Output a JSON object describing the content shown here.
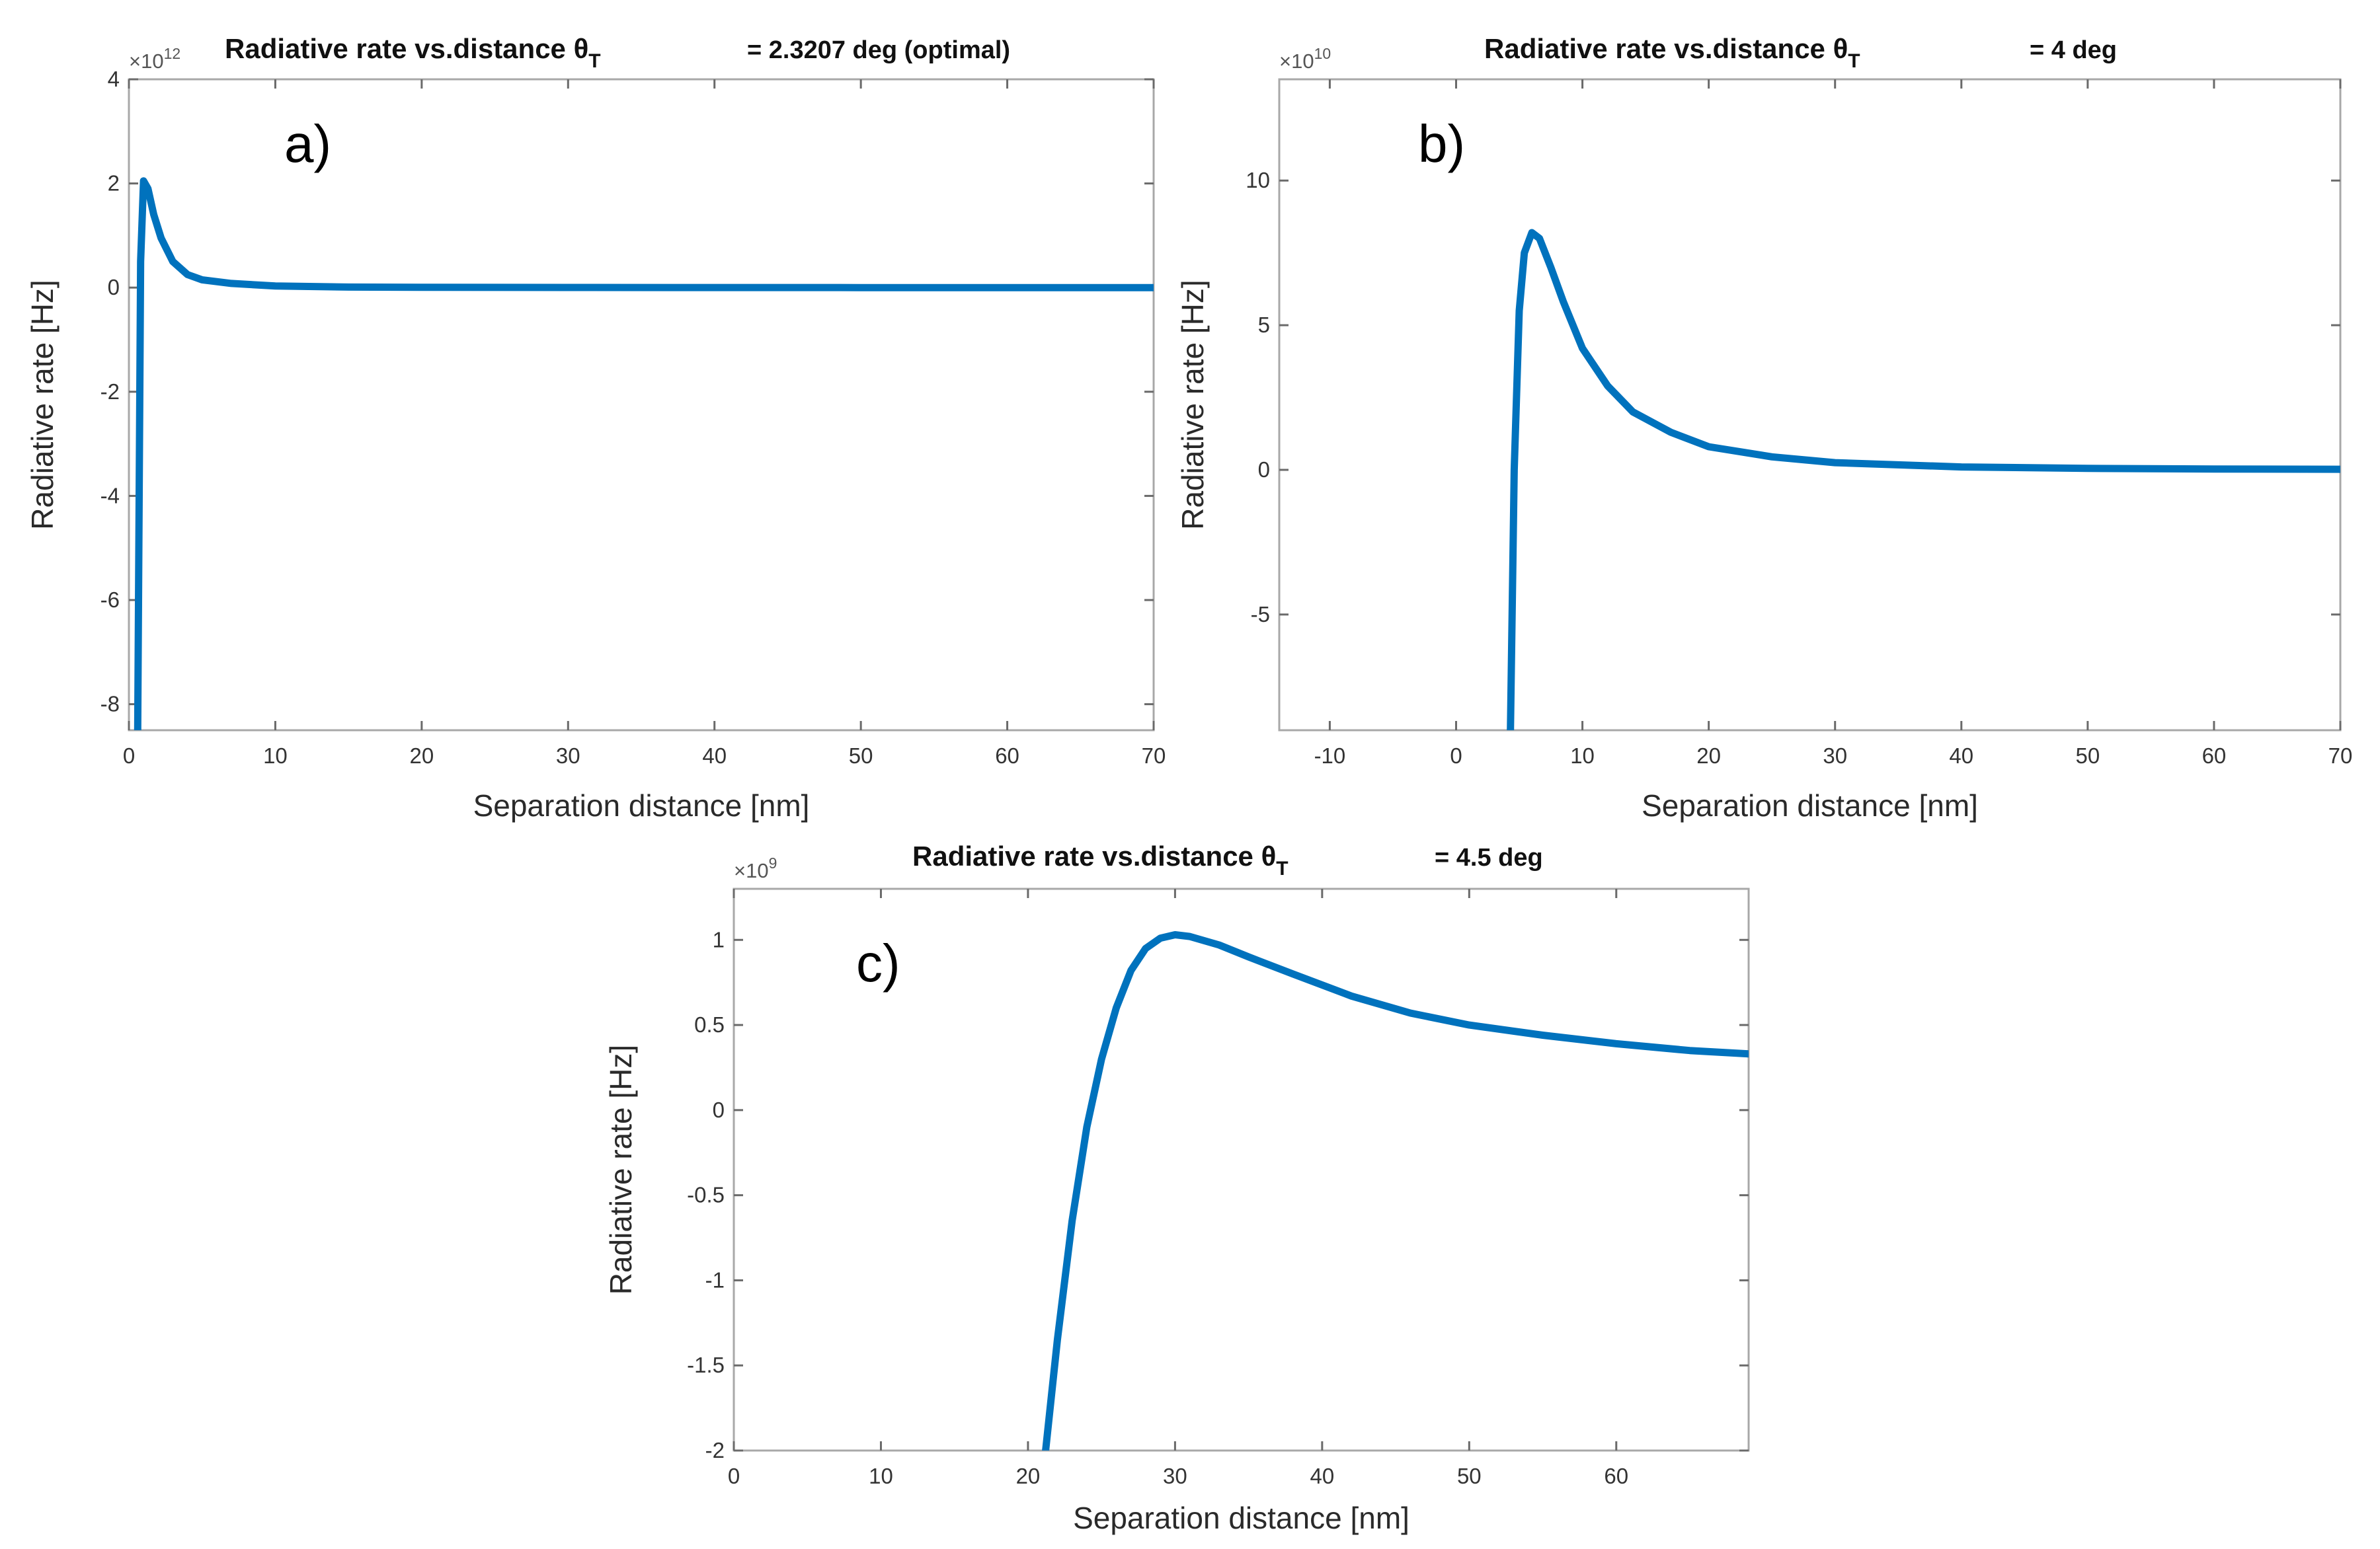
{
  "colors": {
    "series": "#0072BD",
    "axis": "#a8a8a8"
  },
  "chart_data": [
    {
      "type": "line",
      "panel": "a)",
      "title": "Radiative rate vs.distance θ",
      "title_subscript": "T",
      "title_value": "= 2.3207 deg (optimal)",
      "xlabel": "Separation distance [nm]",
      "ylabel": "Radiative rate [Hz]",
      "y_exponent_base": "×10",
      "y_exponent": "12",
      "xlim": [
        0,
        70
      ],
      "ylim": [
        -8.5,
        4
      ],
      "xticks": [
        0,
        10,
        20,
        30,
        40,
        50,
        60,
        70
      ],
      "xtick_labels": [
        "0",
        "10",
        "20",
        "30",
        "40",
        "50",
        "60",
        "70"
      ],
      "yticks": [
        -8,
        -6,
        -4,
        -2,
        0,
        2,
        4
      ],
      "ytick_labels": [
        "-8",
        "-6",
        "-4",
        "-2",
        "0",
        "2",
        "4"
      ],
      "series": [
        {
          "name": "Radiative rate",
          "x": [
            0.6,
            0.8,
            1.0,
            1.3,
            1.7,
            2.2,
            3,
            4,
            5,
            7,
            10,
            15,
            20,
            30,
            40,
            50,
            60,
            70
          ],
          "y": [
            -8.5,
            0.5,
            2.05,
            1.9,
            1.4,
            0.95,
            0.5,
            0.25,
            0.15,
            0.08,
            0.03,
            0.01,
            0.005,
            0.002,
            0.001,
            0.0,
            0.0,
            0.0
          ]
        }
      ]
    },
    {
      "type": "line",
      "panel": "b)",
      "title": "Radiative rate vs.distance θ",
      "title_subscript": "T",
      "title_value": "= 4 deg",
      "xlabel": "Separation distance [nm]",
      "ylabel": "Radiative rate [Hz]",
      "y_exponent_base": "×10",
      "y_exponent": "10",
      "xlim": [
        -14,
        70
      ],
      "ylim": [
        -9,
        13.5
      ],
      "xticks": [
        -10,
        0,
        10,
        20,
        30,
        40,
        50,
        60,
        70
      ],
      "xtick_labels": [
        "-10",
        "0",
        "10",
        "20",
        "30",
        "40",
        "50",
        "60",
        "70"
      ],
      "yticks": [
        -5,
        0,
        5,
        10
      ],
      "ytick_labels": [
        "-5",
        "0",
        "5",
        "10"
      ],
      "series": [
        {
          "name": "Radiative rate",
          "x": [
            4.3,
            4.6,
            5.0,
            5.4,
            6.0,
            6.6,
            7.5,
            8.5,
            10,
            12,
            14,
            17,
            20,
            25,
            30,
            40,
            50,
            60,
            70
          ],
          "y": [
            -9,
            0,
            5.5,
            7.5,
            8.2,
            8.0,
            7.0,
            5.8,
            4.2,
            2.9,
            2.0,
            1.3,
            0.8,
            0.45,
            0.25,
            0.1,
            0.05,
            0.03,
            0.02
          ]
        }
      ]
    },
    {
      "type": "line",
      "panel": "c)",
      "title": "Radiative rate vs.distance θ",
      "title_subscript": "T",
      "title_value": "= 4.5 deg",
      "xlabel": "Separation distance [nm]",
      "ylabel": "Radiative rate [Hz]",
      "y_exponent_base": "×10",
      "y_exponent": "9",
      "xlim": [
        0,
        69
      ],
      "ylim": [
        -2,
        1.3
      ],
      "xticks": [
        0,
        10,
        20,
        30,
        40,
        50,
        60
      ],
      "xtick_labels": [
        "0",
        "10",
        "20",
        "30",
        "40",
        "50",
        "60"
      ],
      "yticks": [
        -2,
        -1.5,
        -1,
        -0.5,
        0,
        0.5,
        1
      ],
      "ytick_labels": [
        "-2",
        "-1.5",
        "-1",
        "-0.5",
        "0",
        "0.5",
        "1"
      ],
      "series": [
        {
          "name": "Radiative rate",
          "x": [
            21.2,
            22,
            23,
            24,
            25,
            26,
            27,
            28,
            29,
            30,
            31,
            33,
            35,
            38,
            42,
            46,
            50,
            55,
            60,
            65,
            69
          ],
          "y": [
            -2,
            -1.35,
            -0.65,
            -0.1,
            0.3,
            0.6,
            0.82,
            0.95,
            1.01,
            1.03,
            1.02,
            0.97,
            0.9,
            0.8,
            0.67,
            0.57,
            0.5,
            0.44,
            0.39,
            0.35,
            0.33
          ]
        }
      ]
    }
  ]
}
